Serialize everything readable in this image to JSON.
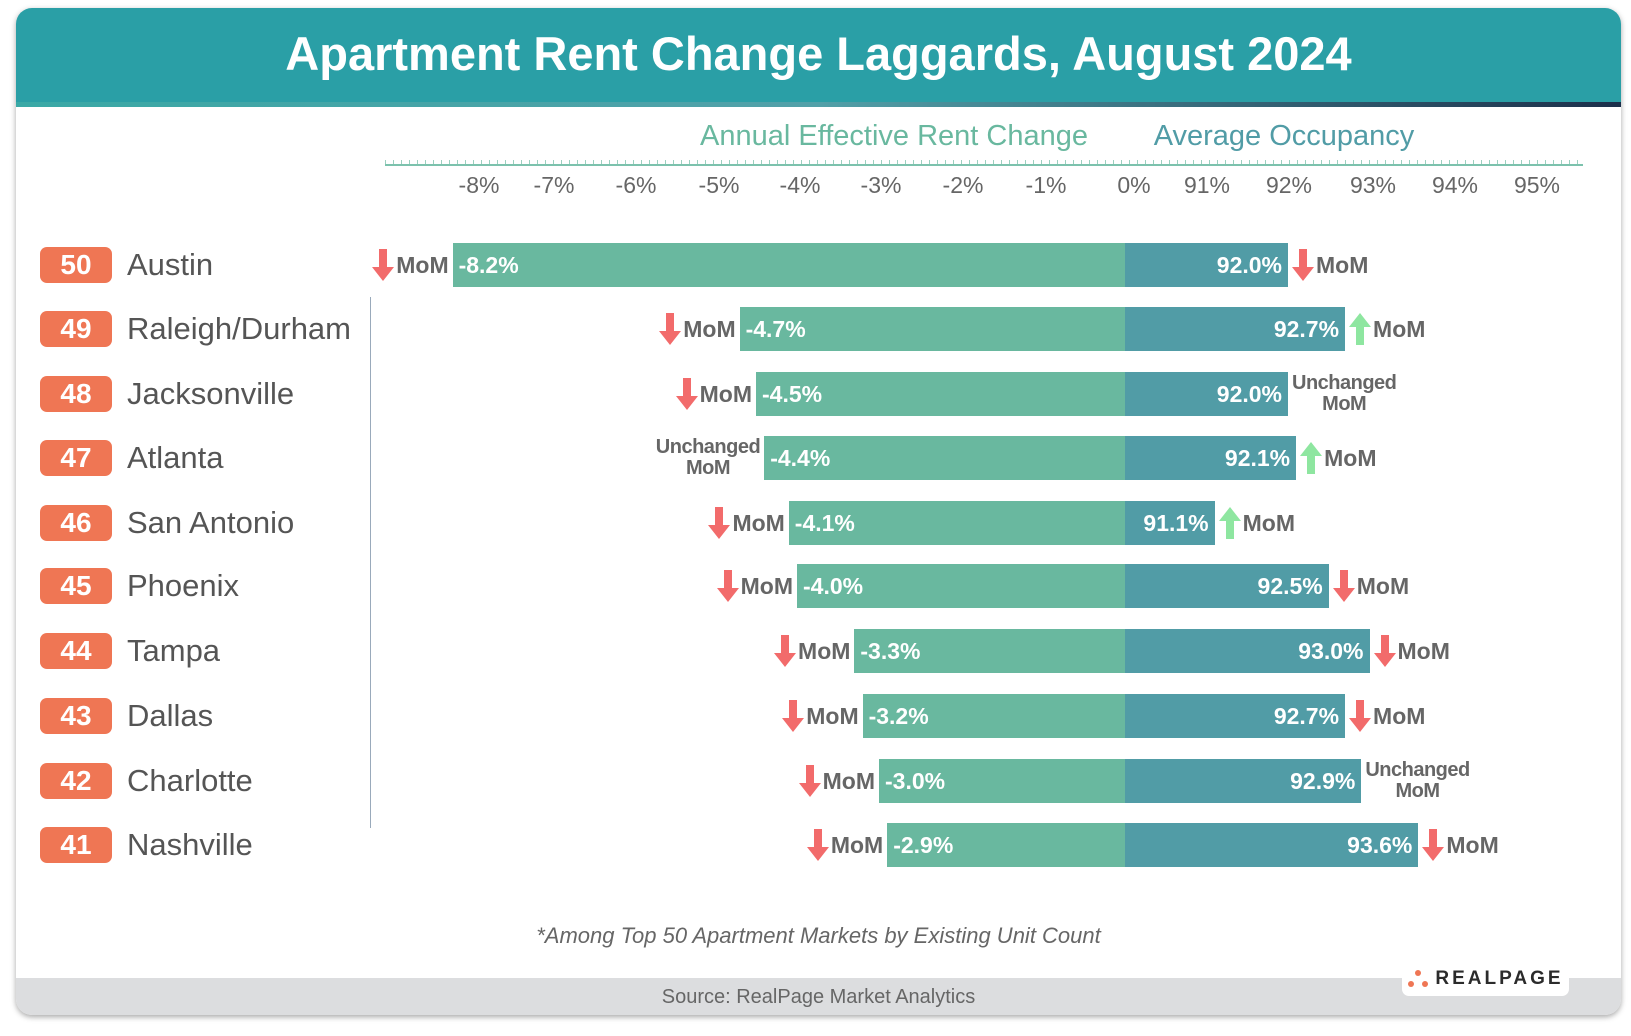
{
  "title": "Apartment Rent Change Laggards, August 2024",
  "footnote": "*Among Top 50 Apartment Markets by Existing Unit Count",
  "source": "Source: RealPage Market Analytics",
  "logo": "REALPAGE",
  "colors": {
    "header": "#2a9fa6",
    "rent_bar": "#69b89f",
    "occupancy_bar": "#519ca6",
    "badge": "#ef7654",
    "down_arrow": "#f26b6b",
    "up_arrow": "#8ee6a0"
  },
  "chart_data": {
    "type": "bar",
    "subtitles": [
      "Annual Effective Rent Change",
      "Average Occupancy"
    ],
    "rent_ticks": [
      "-8%",
      "-7%",
      "-6%",
      "-5%",
      "-4%",
      "-3%",
      "-2%",
      "-1%",
      "0%"
    ],
    "occupancy_ticks": [
      "91%",
      "92%",
      "93%",
      "94%",
      "95%"
    ],
    "rent_range": [
      -8.2,
      0
    ],
    "occupancy_range": [
      90,
      95
    ],
    "mom_label": "MoM",
    "unchanged_label": "Unchanged",
    "rows": [
      {
        "rank": "50",
        "city": "Austin",
        "rent": -8.2,
        "rent_label": "-8.2%",
        "occupancy": 92.0,
        "occ_label": "92.0%",
        "rent_mom": "down",
        "occ_mom": "down"
      },
      {
        "rank": "49",
        "city": "Raleigh/Durham",
        "rent": -4.7,
        "rent_label": "-4.7%",
        "occupancy": 92.7,
        "occ_label": "92.7%",
        "rent_mom": "down",
        "occ_mom": "up"
      },
      {
        "rank": "48",
        "city": "Jacksonville",
        "rent": -4.5,
        "rent_label": "-4.5%",
        "occupancy": 92.0,
        "occ_label": "92.0%",
        "rent_mom": "down",
        "occ_mom": "unchanged"
      },
      {
        "rank": "47",
        "city": "Atlanta",
        "rent": -4.4,
        "rent_label": "-4.4%",
        "occupancy": 92.1,
        "occ_label": "92.1%",
        "rent_mom": "unchanged",
        "occ_mom": "up"
      },
      {
        "rank": "46",
        "city": "San Antonio",
        "rent": -4.1,
        "rent_label": "-4.1%",
        "occupancy": 91.1,
        "occ_label": "91.1%",
        "rent_mom": "down",
        "occ_mom": "up"
      },
      {
        "rank": "45",
        "city": "Phoenix",
        "rent": -4.0,
        "rent_label": "-4.0%",
        "occupancy": 92.5,
        "occ_label": "92.5%",
        "rent_mom": "down",
        "occ_mom": "down"
      },
      {
        "rank": "44",
        "city": "Tampa",
        "rent": -3.3,
        "rent_label": "-3.3%",
        "occupancy": 93.0,
        "occ_label": "93.0%",
        "rent_mom": "down",
        "occ_mom": "down"
      },
      {
        "rank": "43",
        "city": "Dallas",
        "rent": -3.2,
        "rent_label": "-3.2%",
        "occupancy": 92.7,
        "occ_label": "92.7%",
        "rent_mom": "down",
        "occ_mom": "down"
      },
      {
        "rank": "42",
        "city": "Charlotte",
        "rent": -3.0,
        "rent_label": "-3.0%",
        "occupancy": 92.9,
        "occ_label": "92.9%",
        "rent_mom": "down",
        "occ_mom": "unchanged"
      },
      {
        "rank": "41",
        "city": "Nashville",
        "rent": -2.9,
        "rent_label": "-2.9%",
        "occupancy": 93.6,
        "occ_label": "93.6%",
        "rent_mom": "down",
        "occ_mom": "down"
      }
    ]
  }
}
